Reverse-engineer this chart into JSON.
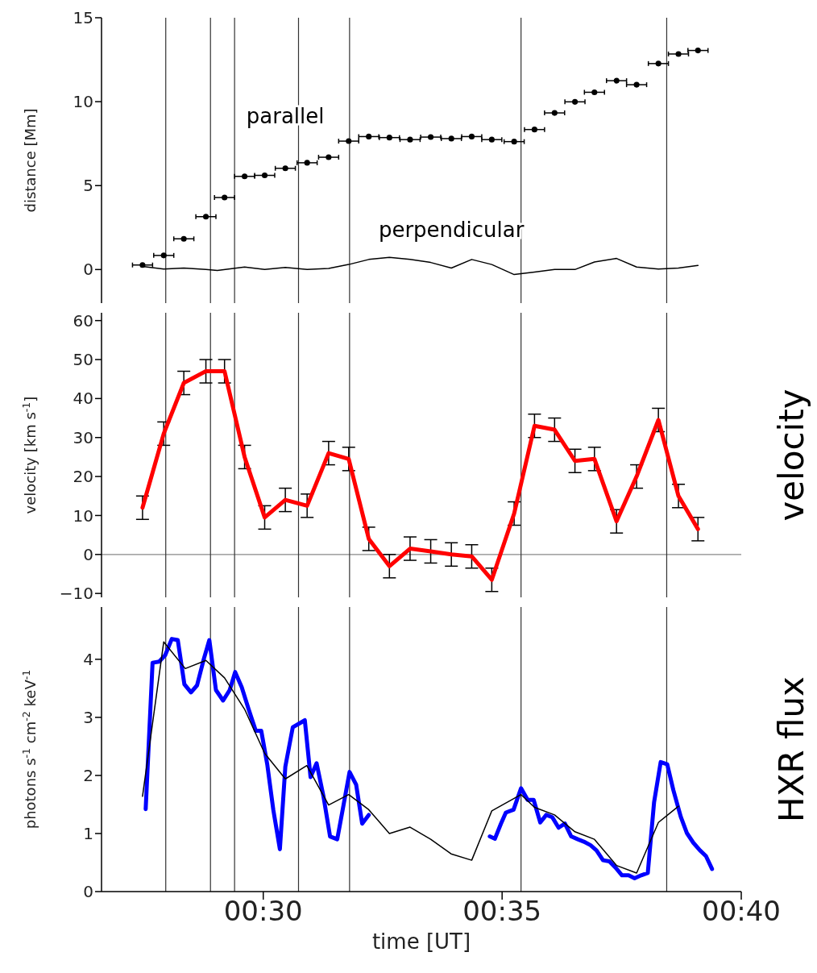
{
  "chart_data": [
    {
      "type": "scatter",
      "ylabel": "distance [Mm]",
      "xlim": [
        0.4436,
        0.6667
      ],
      "xticks": [
        {
          "value": 0.5,
          "label": null
        },
        {
          "value": 0.5833,
          "label": null
        },
        {
          "value": 0.6667,
          "label": null
        }
      ],
      "ylim": [
        -2,
        15
      ],
      "yticks": [
        0,
        5,
        10,
        15
      ],
      "tick_labels": "y",
      "grid": false,
      "legend": false,
      "series": [
        {
          "name": "parallel",
          "color": "#000000",
          "x": [
            0.4579,
            0.4653,
            0.4723,
            0.48,
            0.4865,
            0.4935,
            0.5005,
            0.5077,
            0.5153,
            0.5228,
            0.5298,
            0.5368,
            0.544,
            0.5512,
            0.5584,
            0.5656,
            0.5727,
            0.5797,
            0.5875,
            0.5946,
            0.6016,
            0.6087,
            0.6155,
            0.6232,
            0.6302,
            0.6378,
            0.6448,
            0.6516
          ],
          "values": [
            0.27,
            0.84,
            1.83,
            3.15,
            4.29,
            5.55,
            5.61,
            6.03,
            6.36,
            6.69,
            7.65,
            7.92,
            7.86,
            7.74,
            7.89,
            7.8,
            7.92,
            7.74,
            7.62,
            8.34,
            9.33,
            9.99,
            10.56,
            11.25,
            11.01,
            12.27,
            12.84,
            13.05
          ],
          "xerrors": [
            0.0035,
            0.0035,
            0.0035,
            0.0035,
            0.0035,
            0.0035,
            0.0035,
            0.0035,
            0.0035,
            0.0035,
            0.0035,
            0.0035,
            0.0035,
            0.0035,
            0.0035,
            0.0035,
            0.0035,
            0.0035,
            0.0035,
            0.0035,
            0.0035,
            0.0035,
            0.0035,
            0.0035,
            0.0035,
            0.0035,
            0.0035,
            0.0035
          ]
        },
        {
          "name": "perpendicular",
          "type": "line",
          "marker": "none",
          "color": "#000000",
          "x": [
            0.4579,
            0.4653,
            0.4723,
            0.48,
            0.484,
            0.4935,
            0.5005,
            0.5077,
            0.5153,
            0.5228,
            0.5298,
            0.5368,
            0.544,
            0.5512,
            0.5584,
            0.5656,
            0.5727,
            0.5797,
            0.5875,
            0.5946,
            0.6016,
            0.6087,
            0.6155,
            0.6232,
            0.6302,
            0.6378,
            0.6448,
            0.6516
          ],
          "values": [
            0.18,
            0.03,
            0.09,
            0,
            -0.06,
            0.15,
            0,
            0.12,
            0,
            0.06,
            0.3,
            0.6,
            0.72,
            0.6,
            0.42,
            0.09,
            0.6,
            0.3,
            -0.3,
            -0.15,
            0,
            0,
            0.45,
            0.66,
            0.15,
            0.03,
            0.09,
            0.24
          ]
        }
      ],
      "ref_lines": [
        {
          "axis": "x",
          "value": 0.466,
          "color": "#333333"
        },
        {
          "axis": "x",
          "value": 0.4816,
          "color": "#333333"
        },
        {
          "axis": "x",
          "value": 0.49,
          "color": "#333333"
        },
        {
          "axis": "x",
          "value": 0.5123,
          "color": "#333333"
        },
        {
          "axis": "x",
          "value": 0.5301,
          "color": "#333333"
        },
        {
          "axis": "x",
          "value": 0.5899,
          "color": "#333333"
        },
        {
          "axis": "x",
          "value": 0.6407,
          "color": "#333333"
        }
      ]
    },
    {
      "type": "line",
      "y2label": "velocity",
      "ylabel": "velocity [km s$^{-1}$]",
      "xlim": [
        0.4436,
        0.6667
      ],
      "xticks": [
        {
          "value": 0.5,
          "label": null
        },
        {
          "value": 0.5833,
          "label": null
        },
        {
          "value": 0.6667,
          "label": null
        }
      ],
      "ylim": [
        -11,
        62
      ],
      "yticks": [
        {
          "value": -10,
          "label": "−10"
        },
        0,
        10,
        20,
        30,
        40,
        50,
        60
      ],
      "tick_labels": "y",
      "grid": false,
      "legend": false,
      "marker": "none",
      "series": [
        {
          "color": "#ff0000",
          "x": [
            0.4579,
            0.4653,
            0.4723,
            0.48,
            0.4865,
            0.4935,
            0.5005,
            0.5077,
            0.5153,
            0.5228,
            0.5298,
            0.5368,
            0.544,
            0.5512,
            0.5584,
            0.5656,
            0.5727,
            0.5797,
            0.5875,
            0.5946,
            0.6016,
            0.6087,
            0.6155,
            0.6232,
            0.6302,
            0.6378,
            0.6448,
            0.6516
          ],
          "values": [
            12,
            31,
            44,
            47,
            47,
            25,
            9.5,
            14,
            12.5,
            26,
            24.5,
            4,
            -3,
            1.5,
            0.8,
            0,
            -0.5,
            -6.5,
            10.5,
            33,
            32,
            24,
            24.5,
            8.5,
            20,
            34.5,
            15,
            6.5
          ],
          "errors": [
            3,
            3,
            3,
            3,
            3,
            3,
            3,
            3,
            3,
            3,
            3,
            3,
            3,
            3,
            3,
            3,
            3,
            3,
            3,
            3,
            3,
            3,
            3,
            3,
            3,
            3,
            3,
            3
          ]
        }
      ],
      "ref_lines": [
        {
          "axis": "y",
          "value": 0,
          "color": "#888888"
        },
        {
          "axis": "x",
          "value": 0.466,
          "color": "#333333"
        },
        {
          "axis": "x",
          "value": 0.4816,
          "color": "#333333"
        },
        {
          "axis": "x",
          "value": 0.49,
          "color": "#333333"
        },
        {
          "axis": "x",
          "value": 0.5123,
          "color": "#333333"
        },
        {
          "axis": "x",
          "value": 0.5301,
          "color": "#333333"
        },
        {
          "axis": "x",
          "value": 0.5899,
          "color": "#333333"
        },
        {
          "axis": "x",
          "value": 0.6407,
          "color": "#333333"
        }
      ]
    },
    {
      "type": "line",
      "y2label": "HXR flux",
      "xlabel": "time [UT]",
      "ylabel": "photons s$^{-1}$ cm$^{-2}$ keV$^{-1}$",
      "xlim": [
        0.4436,
        0.6667
      ],
      "xticks": [
        {
          "value": 0.5,
          "label": "00:30"
        },
        {
          "value": 0.5833,
          "label": "00:35"
        },
        {
          "value": 0.6667,
          "label": "00:40"
        }
      ],
      "ylim": [
        0,
        4.9
      ],
      "yticks": [
        0,
        1,
        2,
        3,
        4
      ],
      "grid": false,
      "legend": false,
      "marker": "none",
      "series": [
        {
          "color": "#0000ff",
          "x": [
            0.459,
            0.4614,
            0.4637,
            0.4658,
            0.4681,
            0.4702,
            0.4725,
            0.4748,
            0.4769,
            0.4793,
            0.4812,
            0.4835,
            0.486,
            0.4883,
            0.4902,
            0.4925,
            0.4949,
            0.4974,
            0.4993,
            0.5014,
            0.5035,
            0.5058,
            0.5077,
            0.5103,
            0.5145,
            0.5165,
            0.5186,
            0.521,
            0.5233,
            0.5258,
            0.528,
            0.5301,
            0.5324,
            0.5345,
            0.5368,
            0.55,
            0.579,
            0.5808,
            0.5829,
            0.5846,
            0.5873,
            0.5899,
            0.5922,
            0.5943,
            0.5966,
            0.5987,
            0.6008,
            0.603,
            0.6052,
            0.6074,
            0.6097,
            0.6118,
            0.6141,
            0.6162,
            0.6185,
            0.6207,
            0.6229,
            0.6251,
            0.6274,
            0.6295,
            0.6318,
            0.6341,
            0.6363,
            0.6386,
            0.6409,
            0.643,
            0.6456,
            0.6477,
            0.65,
            0.6523,
            0.6544,
            0.6565
          ],
          "values": [
            1.42,
            3.94,
            3.96,
            4.07,
            4.35,
            4.33,
            3.57,
            3.43,
            3.55,
            4.01,
            4.33,
            3.47,
            3.29,
            3.47,
            3.78,
            3.52,
            3.14,
            2.77,
            2.77,
            2.19,
            1.41,
            0.73,
            2.15,
            2.83,
            2.95,
            1.97,
            2.21,
            1.64,
            0.95,
            0.9,
            1.49,
            2.06,
            1.84,
            1.17,
            1.32,
            null,
            0.95,
            0.91,
            1.17,
            1.36,
            1.41,
            1.78,
            1.58,
            1.58,
            1.19,
            1.32,
            1.28,
            1.1,
            1.17,
            0.95,
            0.9,
            0.86,
            0.8,
            0.71,
            0.54,
            0.52,
            0.41,
            0.28,
            0.28,
            0.23,
            0.28,
            0.32,
            1.54,
            2.23,
            2.19,
            1.75,
            1.29,
            1.01,
            0.84,
            0.71,
            0.61,
            0.39
          ]
        },
        {
          "color": "#000000",
          "x": [
            0.4579,
            0.4653,
            0.4728,
            0.48,
            0.4865,
            0.4935,
            0.5005,
            0.5077,
            0.5152,
            0.5228,
            0.5298,
            0.5368,
            0.544,
            0.5512,
            0.5584,
            0.5655,
            0.5727,
            0.5797,
            0.5899,
            0.5946,
            0.6016,
            0.6087,
            0.6155,
            0.6232,
            0.6302,
            0.6378,
            0.6448
          ],
          "values": [
            1.64,
            4.3,
            3.84,
            3.98,
            3.68,
            3.14,
            2.38,
            1.94,
            2.17,
            1.49,
            1.67,
            1.41,
            1.0,
            1.11,
            0.9,
            0.65,
            0.54,
            1.39,
            1.67,
            1.45,
            1.32,
            1.03,
            0.9,
            0.45,
            0.32,
            1.19,
            1.47
          ]
        }
      ],
      "ref_lines": [
        {
          "axis": "x",
          "value": 0.466,
          "color": "#333333"
        },
        {
          "axis": "x",
          "value": 0.4816,
          "color": "#333333"
        },
        {
          "axis": "x",
          "value": 0.49,
          "color": "#333333"
        },
        {
          "axis": "x",
          "value": 0.5123,
          "color": "#333333"
        },
        {
          "axis": "x",
          "value": 0.5301,
          "color": "#333333"
        },
        {
          "axis": "x",
          "value": 0.5899,
          "color": "#333333"
        },
        {
          "axis": "x",
          "value": 0.6407,
          "color": "#333333"
        }
      ]
    }
  ]
}
